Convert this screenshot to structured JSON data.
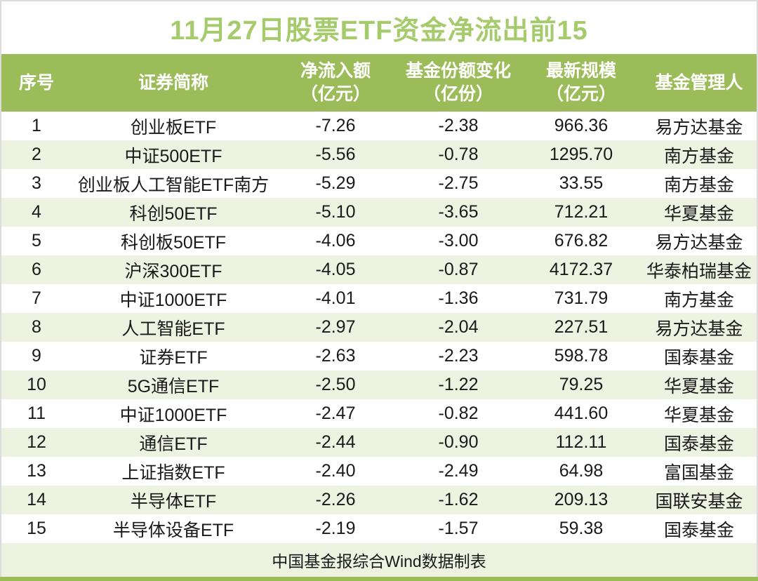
{
  "title": "11月27日股票ETF资金净流出前15",
  "colors": {
    "header_bg": "#9CBC5A",
    "title_text": "#A6CB6D",
    "row_alt_bg": "#EEF2E1",
    "bottom_bar": "#9CBC5A",
    "header_text": "#FFFFFF",
    "body_text": "#1A1A1A",
    "outer_border": "#DCDCDC"
  },
  "header": {
    "col1": "序号",
    "col2": "证券简称",
    "col3_line1": "净流入额",
    "col3_line2": "（亿元）",
    "col4_line1": "基金份额变化",
    "col4_line2": "（亿份）",
    "col5_line1": "最新规模",
    "col5_line2": "（亿元）",
    "col6": "基金管理人"
  },
  "footer": {
    "source_note": "中国基金报综合Wind数据制表"
  },
  "chart_data": {
    "type": "table",
    "title": "11月27日股票ETF资金净流出前15",
    "columns": [
      "序号",
      "证券简称",
      "净流入额（亿元）",
      "基金份额变化（亿份）",
      "最新规模（亿元）",
      "基金管理人"
    ],
    "rows": [
      [
        "1",
        "创业板ETF",
        "-7.26",
        "-2.38",
        "966.36",
        "易方达基金"
      ],
      [
        "2",
        "中证500ETF",
        "-5.56",
        "-0.78",
        "1295.70",
        "南方基金"
      ],
      [
        "3",
        "创业板人工智能ETF南方",
        "-5.29",
        "-2.75",
        "33.55",
        "南方基金"
      ],
      [
        "4",
        "科创50ETF",
        "-5.10",
        "-3.65",
        "712.21",
        "华夏基金"
      ],
      [
        "5",
        "科创板50ETF",
        "-4.06",
        "-3.00",
        "676.82",
        "易方达基金"
      ],
      [
        "6",
        "沪深300ETF",
        "-4.05",
        "-0.87",
        "4172.37",
        "华泰柏瑞基金"
      ],
      [
        "7",
        "中证1000ETF",
        "-4.01",
        "-1.36",
        "731.79",
        "南方基金"
      ],
      [
        "8",
        "人工智能ETF",
        "-2.97",
        "-2.04",
        "227.51",
        "易方达基金"
      ],
      [
        "9",
        "证券ETF",
        "-2.63",
        "-2.23",
        "598.78",
        "国泰基金"
      ],
      [
        "10",
        "5G通信ETF",
        "-2.50",
        "-1.22",
        "79.25",
        "华夏基金"
      ],
      [
        "11",
        "中证1000ETF",
        "-2.47",
        "-0.82",
        "441.60",
        "华夏基金"
      ],
      [
        "12",
        "通信ETF",
        "-2.44",
        "-0.90",
        "112.11",
        "国泰基金"
      ],
      [
        "13",
        "上证指数ETF",
        "-2.40",
        "-2.49",
        "64.98",
        "富国基金"
      ],
      [
        "14",
        "半导体ETF",
        "-2.26",
        "-1.62",
        "209.13",
        "国联安基金"
      ],
      [
        "15",
        "半导体设备ETF",
        "-2.19",
        "-1.57",
        "59.38",
        "国泰基金"
      ]
    ]
  }
}
